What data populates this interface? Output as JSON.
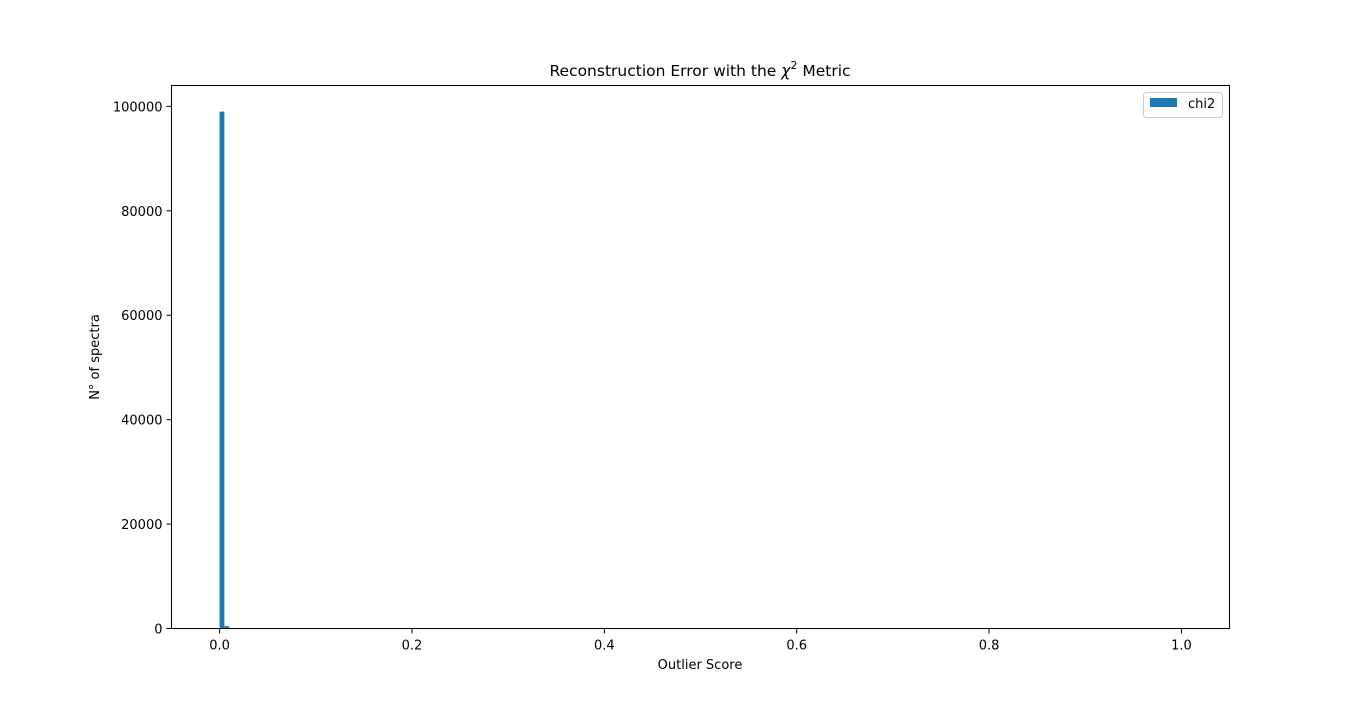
{
  "chart_data": {
    "type": "bar",
    "title_main": "Reconstruction Error with the ",
    "title_symbol": "χ",
    "title_exponent": "2",
    "title_end": " Metric",
    "xlabel": "Outlier Score",
    "ylabel": "N° of spectra",
    "xlim": [
      -0.05,
      1.05
    ],
    "ylim": [
      0,
      104000
    ],
    "xticks": [
      0.0,
      0.2,
      0.4,
      0.6,
      0.8,
      1.0
    ],
    "xtick_labels": [
      "0.0",
      "0.2",
      "0.4",
      "0.6",
      "0.8",
      "1.0"
    ],
    "yticks": [
      0,
      20000,
      40000,
      60000,
      80000,
      100000
    ],
    "ytick_labels": [
      "0",
      "20000",
      "40000",
      "60000",
      "80000",
      "100000"
    ],
    "grid": false,
    "legend_position": "top-right",
    "bin_width": 0.005,
    "series": [
      {
        "name": "chi2",
        "color": "#1f77b4",
        "bins": [
          {
            "x0": 0.0,
            "x1": 0.005,
            "count": 99000
          },
          {
            "x0": 0.005,
            "x1": 0.01,
            "count": 450
          }
        ]
      }
    ]
  }
}
